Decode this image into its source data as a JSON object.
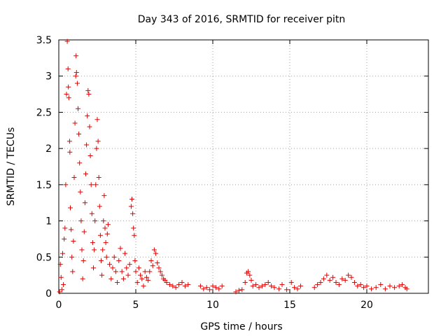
{
  "chart_data": {
    "type": "scatter",
    "title": "Day 343 of 2016, SRMTID for receiver pitn",
    "xlabel": "GPS time / hours",
    "ylabel": "SRMTID / TECUs",
    "xlim": [
      0,
      24
    ],
    "ylim": [
      0,
      3.5
    ],
    "xticks": [
      0,
      5,
      10,
      15,
      20
    ],
    "xtick_labels": [
      "0",
      "5",
      "10",
      "15",
      "20"
    ],
    "yticks": [
      0,
      0.5,
      1,
      1.5,
      2,
      2.5,
      3,
      3.5
    ],
    "ytick_labels": [
      "0",
      "0.5",
      "1",
      "1.5",
      "2",
      "2.5",
      "3",
      "3.5"
    ],
    "grid": true,
    "marker": "+",
    "marker_color": "#e00000",
    "series": [
      {
        "name": "SRMTID",
        "points": [
          [
            0.05,
            0.02
          ],
          [
            0.1,
            0.4
          ],
          [
            0.15,
            0.22
          ],
          [
            0.2,
            0.05
          ],
          [
            0.25,
            0.55
          ],
          [
            0.3,
            0.12
          ],
          [
            0.35,
            0.75
          ],
          [
            0.4,
            0.9
          ],
          [
            0.45,
            1.5
          ],
          [
            0.5,
            2.75
          ],
          [
            0.55,
            3.48
          ],
          [
            0.6,
            3.1
          ],
          [
            0.62,
            2.85
          ],
          [
            0.65,
            2.7
          ],
          [
            0.7,
            2.1
          ],
          [
            0.72,
            1.95
          ],
          [
            0.75,
            1.18
          ],
          [
            0.8,
            0.88
          ],
          [
            0.85,
            0.5
          ],
          [
            0.9,
            0.3
          ],
          [
            0.95,
            0.72
          ],
          [
            1.0,
            1.6
          ],
          [
            1.05,
            2.35
          ],
          [
            1.1,
            3.0
          ],
          [
            1.12,
            3.28
          ],
          [
            1.15,
            3.05
          ],
          [
            1.2,
            2.9
          ],
          [
            1.25,
            2.55
          ],
          [
            1.3,
            2.2
          ],
          [
            1.35,
            1.8
          ],
          [
            1.4,
            1.4
          ],
          [
            1.45,
            1.0
          ],
          [
            1.5,
            0.6
          ],
          [
            1.55,
            0.2
          ],
          [
            1.6,
            0.45
          ],
          [
            1.65,
            0.85
          ],
          [
            1.7,
            1.25
          ],
          [
            1.75,
            1.65
          ],
          [
            1.8,
            2.05
          ],
          [
            1.85,
            2.45
          ],
          [
            1.9,
            2.8
          ],
          [
            1.95,
            2.75
          ],
          [
            2.0,
            2.3
          ],
          [
            2.05,
            1.9
          ],
          [
            2.1,
            1.5
          ],
          [
            2.15,
            1.1
          ],
          [
            2.2,
            0.7
          ],
          [
            2.25,
            0.35
          ],
          [
            2.3,
            0.6
          ],
          [
            2.35,
            1.0
          ],
          [
            2.4,
            1.5
          ],
          [
            2.45,
            2.0
          ],
          [
            2.5,
            2.4
          ],
          [
            2.55,
            2.1
          ],
          [
            2.6,
            1.6
          ],
          [
            2.65,
            1.2
          ],
          [
            2.7,
            0.8
          ],
          [
            2.75,
            0.45
          ],
          [
            2.8,
            0.25
          ],
          [
            2.85,
            0.6
          ],
          [
            2.9,
            1.0
          ],
          [
            2.95,
            1.35
          ],
          [
            3.0,
            0.9
          ],
          [
            3.05,
            0.7
          ],
          [
            3.1,
            0.5
          ],
          [
            3.15,
            0.82
          ],
          [
            3.2,
            0.95
          ],
          [
            3.3,
            0.4
          ],
          [
            3.4,
            0.2
          ],
          [
            3.5,
            0.35
          ],
          [
            3.6,
            0.5
          ],
          [
            3.7,
            0.3
          ],
          [
            3.8,
            0.15
          ],
          [
            3.9,
            0.45
          ],
          [
            4.0,
            0.62
          ],
          [
            4.1,
            0.3
          ],
          [
            4.2,
            0.2
          ],
          [
            4.3,
            0.55
          ],
          [
            4.4,
            0.35
          ],
          [
            4.5,
            0.25
          ],
          [
            4.6,
            0.4
          ],
          [
            4.7,
            1.2
          ],
          [
            4.75,
            1.3
          ],
          [
            4.8,
            1.1
          ],
          [
            4.85,
            0.9
          ],
          [
            4.9,
            0.8
          ],
          [
            4.95,
            0.45
          ],
          [
            5.0,
            0.3
          ],
          [
            5.1,
            0.15
          ],
          [
            5.2,
            0.35
          ],
          [
            5.3,
            0.25
          ],
          [
            5.4,
            0.2
          ],
          [
            5.5,
            0.1
          ],
          [
            5.6,
            0.3
          ],
          [
            5.7,
            0.22
          ],
          [
            5.8,
            0.18
          ],
          [
            5.9,
            0.3
          ],
          [
            6.0,
            0.45
          ],
          [
            6.1,
            0.38
          ],
          [
            6.2,
            0.6
          ],
          [
            6.3,
            0.55
          ],
          [
            6.4,
            0.42
          ],
          [
            6.5,
            0.35
          ],
          [
            6.6,
            0.3
          ],
          [
            6.7,
            0.25
          ],
          [
            6.8,
            0.2
          ],
          [
            6.9,
            0.18
          ],
          [
            7.0,
            0.15
          ],
          [
            7.2,
            0.12
          ],
          [
            7.4,
            0.1
          ],
          [
            7.6,
            0.08
          ],
          [
            7.8,
            0.12
          ],
          [
            8.0,
            0.15
          ],
          [
            8.2,
            0.1
          ],
          [
            8.4,
            0.12
          ],
          [
            9.2,
            0.1
          ],
          [
            9.4,
            0.06
          ],
          [
            9.6,
            0.08
          ],
          [
            9.8,
            0.05
          ],
          [
            10.0,
            0.1
          ],
          [
            10.2,
            0.08
          ],
          [
            10.4,
            0.06
          ],
          [
            10.6,
            0.1
          ],
          [
            11.5,
            0.02
          ],
          [
            11.7,
            0.04
          ],
          [
            11.9,
            0.05
          ],
          [
            12.1,
            0.15
          ],
          [
            12.2,
            0.28
          ],
          [
            12.3,
            0.3
          ],
          [
            12.4,
            0.25
          ],
          [
            12.5,
            0.18
          ],
          [
            12.6,
            0.1
          ],
          [
            12.8,
            0.12
          ],
          [
            13.0,
            0.08
          ],
          [
            13.2,
            0.1
          ],
          [
            13.4,
            0.12
          ],
          [
            13.6,
            0.15
          ],
          [
            13.8,
            0.1
          ],
          [
            14.0,
            0.08
          ],
          [
            14.3,
            0.06
          ],
          [
            14.5,
            0.12
          ],
          [
            14.8,
            0.05
          ],
          [
            15.1,
            0.15
          ],
          [
            15.3,
            0.08
          ],
          [
            15.5,
            0.06
          ],
          [
            15.7,
            0.1
          ],
          [
            16.6,
            0.08
          ],
          [
            16.8,
            0.12
          ],
          [
            17.0,
            0.15
          ],
          [
            17.2,
            0.2
          ],
          [
            17.4,
            0.25
          ],
          [
            17.6,
            0.18
          ],
          [
            17.8,
            0.22
          ],
          [
            18.0,
            0.15
          ],
          [
            18.2,
            0.12
          ],
          [
            18.4,
            0.2
          ],
          [
            18.6,
            0.18
          ],
          [
            18.8,
            0.25
          ],
          [
            19.0,
            0.22
          ],
          [
            19.2,
            0.15
          ],
          [
            19.4,
            0.1
          ],
          [
            19.6,
            0.12
          ],
          [
            19.8,
            0.08
          ],
          [
            20.0,
            0.1
          ],
          [
            20.3,
            0.06
          ],
          [
            20.6,
            0.08
          ],
          [
            20.9,
            0.12
          ],
          [
            21.2,
            0.06
          ],
          [
            21.5,
            0.1
          ],
          [
            21.8,
            0.08
          ],
          [
            22.1,
            0.1
          ],
          [
            22.3,
            0.12
          ],
          [
            22.5,
            0.08
          ],
          [
            22.6,
            0.06
          ]
        ]
      }
    ]
  }
}
